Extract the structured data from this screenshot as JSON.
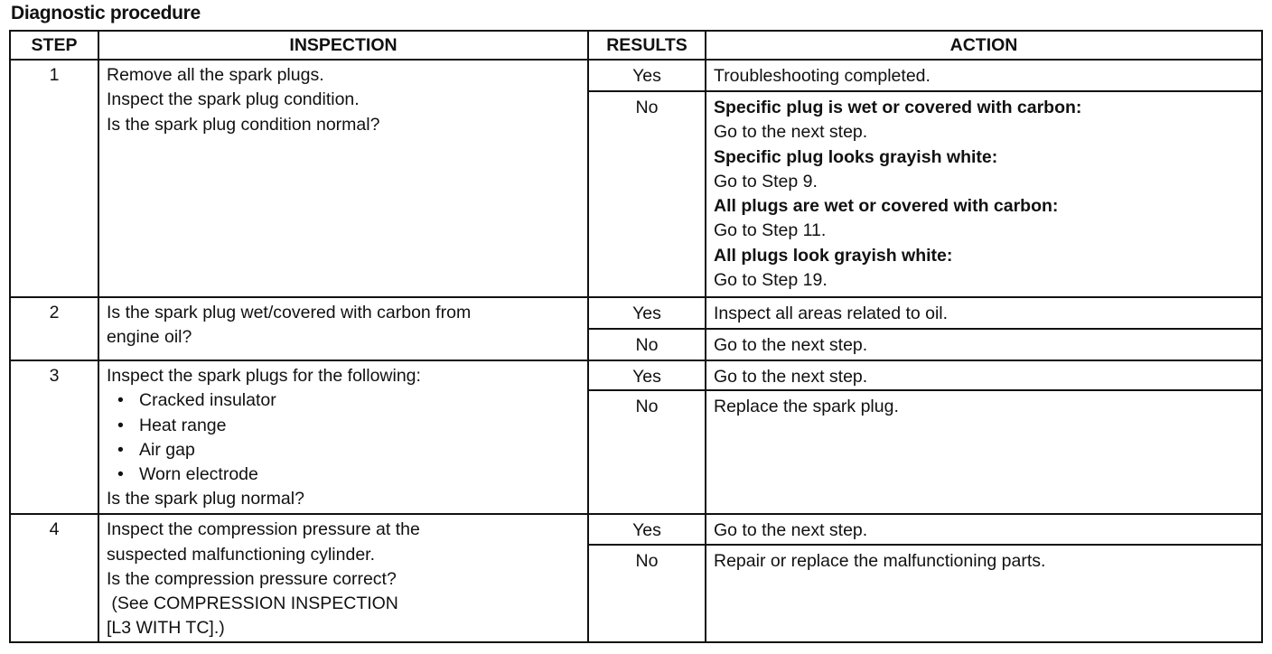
{
  "title": "Diagnostic procedure",
  "headers": {
    "step": "STEP",
    "inspection": "INSPECTION",
    "results": "RESULTS",
    "action": "ACTION"
  },
  "steps": [
    {
      "step": "1",
      "inspection": [
        {
          "text": "Remove all the spark plugs."
        },
        {
          "text": "Inspect the spark plug condition."
        },
        {
          "text": "Is the spark plug condition normal?"
        }
      ],
      "results": [
        {
          "result": "Yes",
          "action": [
            {
              "text": "Troubleshooting completed.",
              "bold": false
            }
          ]
        },
        {
          "result": "No",
          "action": [
            {
              "text": "Specific plug is wet or covered with carbon:",
              "bold": true
            },
            {
              "text": "Go to the next step.",
              "bold": false
            },
            {
              "text": "Specific plug looks grayish white:",
              "bold": true
            },
            {
              "text": "Go to Step 9.",
              "bold": false
            },
            {
              "text": "All plugs are wet or covered with carbon:",
              "bold": true
            },
            {
              "text": "Go to Step 11.",
              "bold": false
            },
            {
              "text": "All plugs look grayish white:",
              "bold": true
            },
            {
              "text": "Go to Step 19.",
              "bold": false
            }
          ]
        }
      ]
    },
    {
      "step": "2",
      "inspection": [
        {
          "text": "Is the spark plug wet/covered with carbon from"
        },
        {
          "text": "engine oil?"
        }
      ],
      "results": [
        {
          "result": "Yes",
          "action": [
            {
              "text": "Inspect all areas related to oil.",
              "bold": false
            }
          ]
        },
        {
          "result": "No",
          "action": [
            {
              "text": "Go to the next step.",
              "bold": false
            }
          ]
        }
      ]
    },
    {
      "step": "3",
      "inspection": [
        {
          "text": "Inspect the spark plugs for the following:"
        },
        {
          "text": "Cracked insulator",
          "bullet": true
        },
        {
          "text": "Heat range",
          "bullet": true
        },
        {
          "text": "Air gap",
          "bullet": true
        },
        {
          "text": "Worn electrode",
          "bullet": true
        },
        {
          "text": "Is the spark plug normal?"
        }
      ],
      "results": [
        {
          "result": "Yes",
          "action": [
            {
              "text": "Go to the next step.",
              "bold": false
            }
          ]
        },
        {
          "result": "No",
          "action": [
            {
              "text": "Replace the spark plug.",
              "bold": false
            }
          ]
        }
      ]
    },
    {
      "step": "4",
      "inspection": [
        {
          "text": "Inspect the compression pressure at the"
        },
        {
          "text": "suspected malfunctioning cylinder."
        },
        {
          "text": "Is the compression pressure correct?"
        },
        {
          "text": " (See COMPRESSION INSPECTION"
        },
        {
          "text": "[L3 WITH TC].)"
        }
      ],
      "results": [
        {
          "result": "Yes",
          "action": [
            {
              "text": "Go to the next step.",
              "bold": false
            }
          ]
        },
        {
          "result": "No",
          "action": [
            {
              "text": "Repair or replace the malfunctioning parts.",
              "bold": false
            }
          ]
        }
      ]
    }
  ]
}
